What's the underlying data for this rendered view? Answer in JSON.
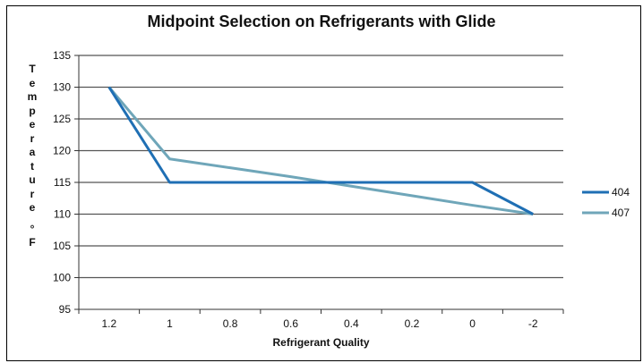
{
  "chart_data": {
    "type": "line",
    "title": "Midpoint Selection on Refrigerants with Glide",
    "xlabel": "Refrigerant Quality",
    "ylabel": "Temperature °F",
    "categories": [
      "1.2",
      "1",
      "0.8",
      "0.6",
      "0.4",
      "0.2",
      "0",
      "-2"
    ],
    "ylim": [
      95,
      135
    ],
    "yticks": [
      95,
      100,
      105,
      110,
      115,
      120,
      125,
      130,
      135
    ],
    "grid": true,
    "legend": "right",
    "series": [
      {
        "name": "404",
        "color": "#1f6fb4",
        "values": [
          130,
          115,
          115,
          115,
          115,
          115,
          115,
          110
        ]
      },
      {
        "name": "407",
        "color": "#6fa6b9",
        "values": [
          130,
          118.7,
          117.3,
          115.9,
          114.4,
          112.9,
          111.4,
          110
        ]
      }
    ]
  }
}
